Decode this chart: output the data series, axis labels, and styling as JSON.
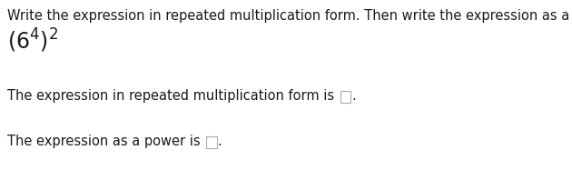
{
  "background_color": "#ffffff",
  "instruction_text": "Write the expression in repeated multiplication form. Then write the expression as a power.",
  "line1_prefix": "The expression in repeated multiplication form is ",
  "line2_prefix": "The expression as a power is ",
  "instruction_fontsize": 10.5,
  "expression_fontsize": 14,
  "body_fontsize": 10.5,
  "text_color": "#1a1a1a",
  "box_edge_color": "#aaaaaa",
  "fig_width": 6.3,
  "fig_height": 1.98,
  "dpi": 100
}
